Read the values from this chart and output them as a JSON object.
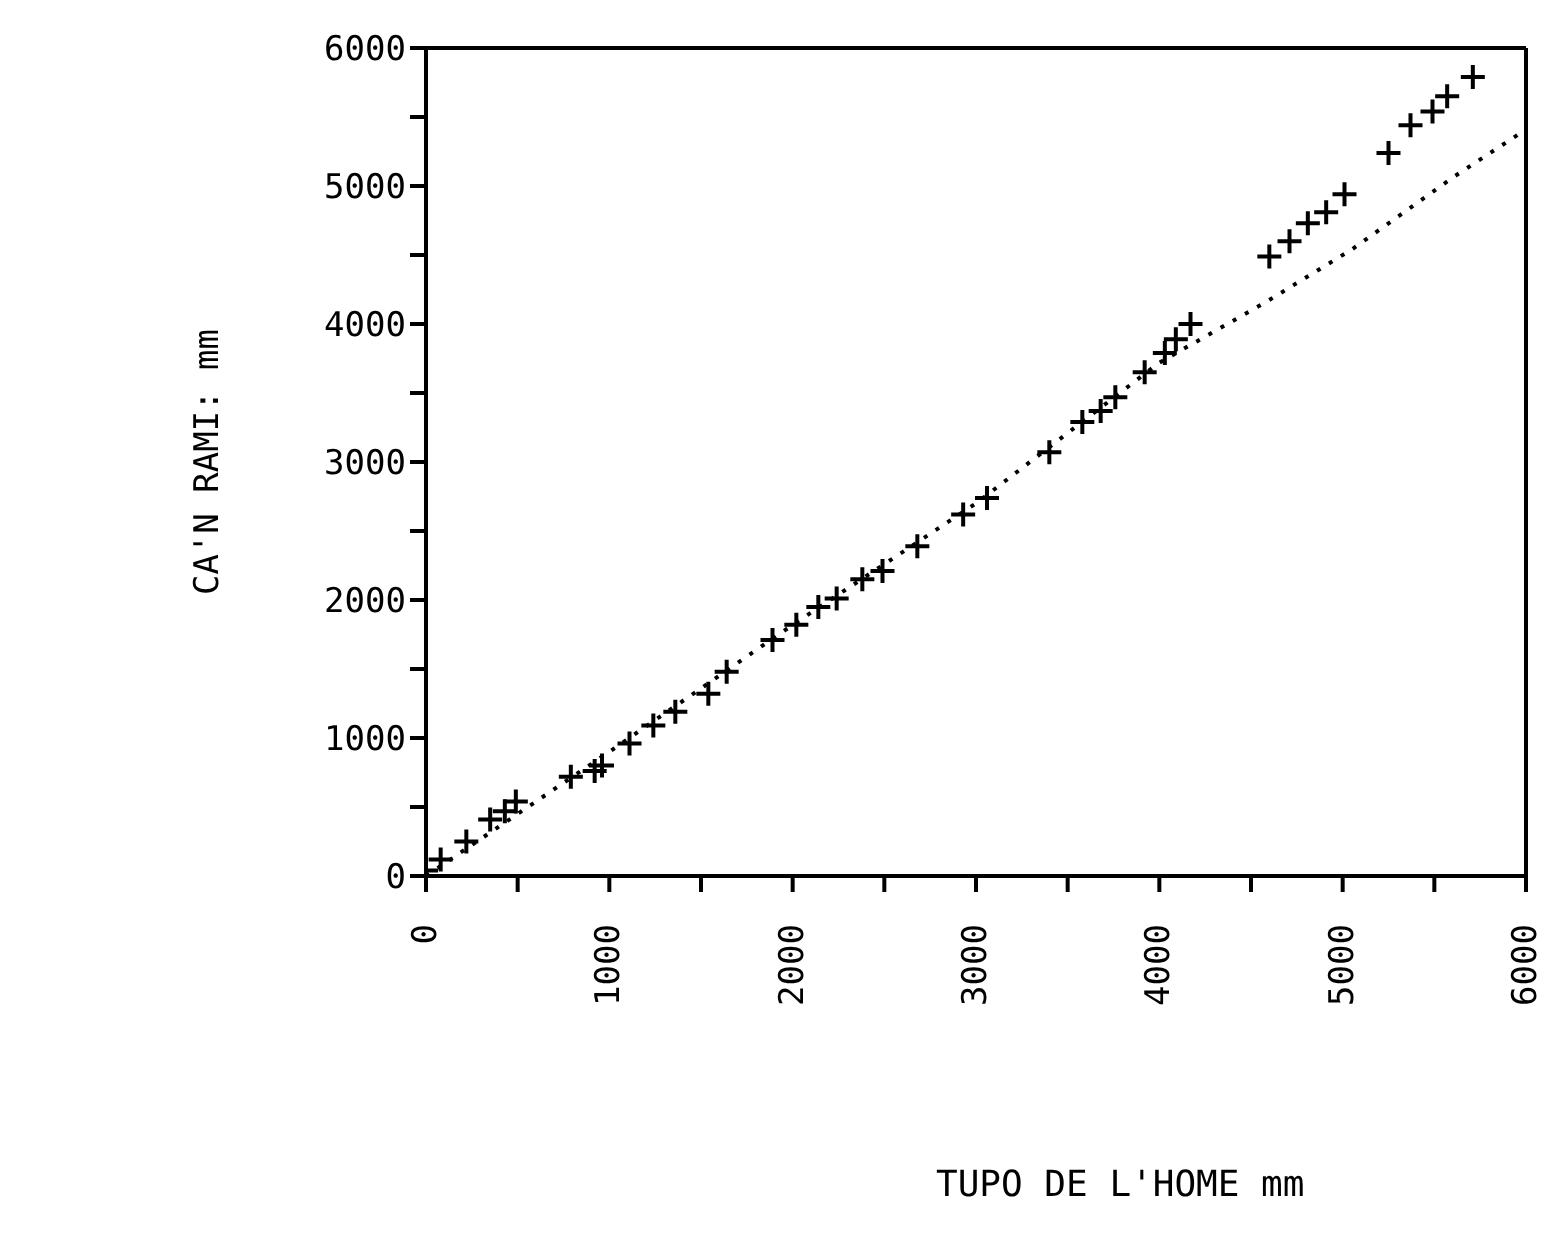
{
  "chart_data": {
    "type": "scatter",
    "xlabel": "TUPO DE L'HOME  mm",
    "ylabel": "CA'N RAMI:  mm",
    "marker": "cross",
    "grid": false,
    "legend": false,
    "xlim": [
      0,
      6000
    ],
    "ylim": [
      0,
      6000
    ],
    "xticks": [
      0,
      {
        "value": 500,
        "label": null
      },
      1000,
      {
        "value": 1500,
        "label": null
      },
      2000,
      {
        "value": 2500,
        "label": null
      },
      3000,
      {
        "value": 3500,
        "label": null
      },
      4000,
      {
        "value": 4500,
        "label": null
      },
      5000,
      {
        "value": 5500,
        "label": null
      },
      6000
    ],
    "yticks": [
      0,
      {
        "value": 500,
        "label": null
      },
      1000,
      {
        "value": 1500,
        "label": null
      },
      2000,
      {
        "value": 2500,
        "label": null
      },
      3000,
      {
        "value": 3500,
        "label": null
      },
      4000,
      {
        "value": 4500,
        "label": null
      },
      5000,
      {
        "value": 5500,
        "label": null
      },
      6000
    ],
    "series": [
      {
        "color": "#000000",
        "x": [
          0,
          80,
          220,
          350,
          430,
          490,
          790,
          920,
          960,
          1110,
          1240,
          1360,
          1540,
          1640,
          1890,
          2020,
          2140,
          2240,
          2380,
          2490,
          2680,
          2930,
          3060,
          3400,
          3580,
          3680,
          3760,
          3920,
          4030,
          4090,
          4170,
          4600,
          4710,
          4810,
          4910,
          5010,
          5250,
          5370,
          5490,
          5570,
          5710
        ],
        "values": [
          40,
          120,
          250,
          410,
          470,
          540,
          720,
          760,
          800,
          960,
          1090,
          1190,
          1320,
          1480,
          1710,
          1820,
          1950,
          2010,
          2150,
          2210,
          2390,
          2620,
          2740,
          3070,
          3290,
          3370,
          3470,
          3650,
          3790,
          3890,
          4000,
          4490,
          4600,
          4730,
          4810,
          4940,
          5240,
          5440,
          5540,
          5650,
          5790
        ]
      },
      {
        "type": "line",
        "color": "#000000",
        "marker": "none",
        "line_style": "dotted",
        "x": [
          0,
          1000,
          2000,
          3000,
          4000,
          4570,
          5050,
          5610,
          6000
        ],
        "values": [
          0,
          900,
          1820,
          2700,
          3720,
          4150,
          4540,
          5070,
          5410
        ]
      }
    ]
  }
}
